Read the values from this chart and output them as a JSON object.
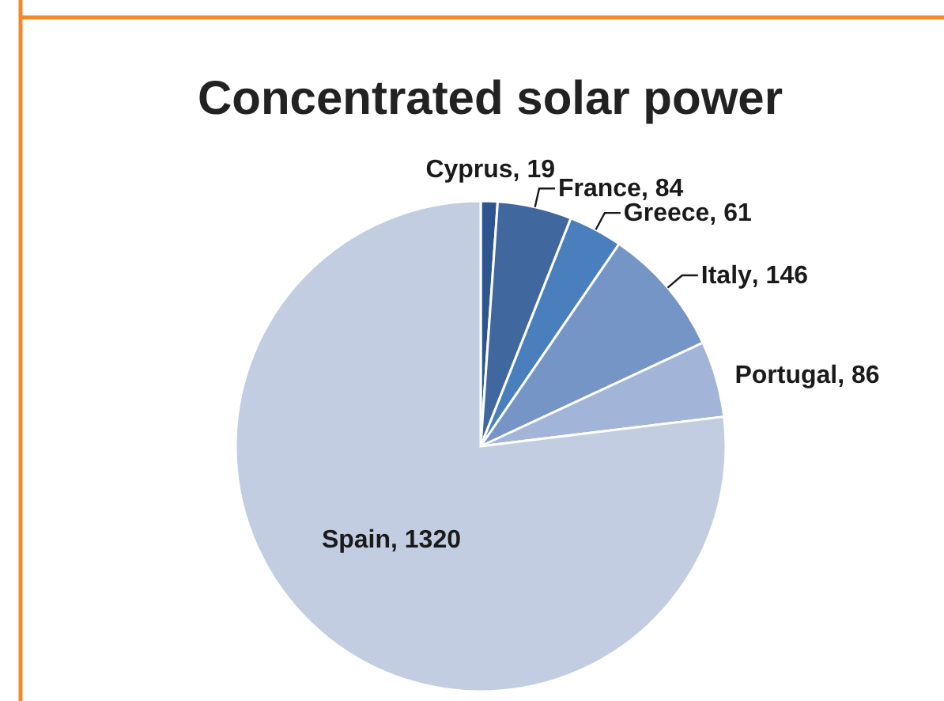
{
  "chart_data": {
    "type": "pie",
    "title": "Concentrated solar power",
    "categories": [
      "Cyprus",
      "France",
      "Greece",
      "Italy",
      "Portugal",
      "Spain"
    ],
    "values": [
      19,
      84,
      61,
      146,
      86,
      1320
    ],
    "colors": [
      "#2f5590",
      "#41679f",
      "#4a7fbd",
      "#7595c6",
      "#a2b4d7",
      "#c3cde2"
    ],
    "value_labels": [
      ", 19",
      ", 84",
      ", 61",
      ", 146",
      ", 86",
      ", 1320"
    ]
  }
}
